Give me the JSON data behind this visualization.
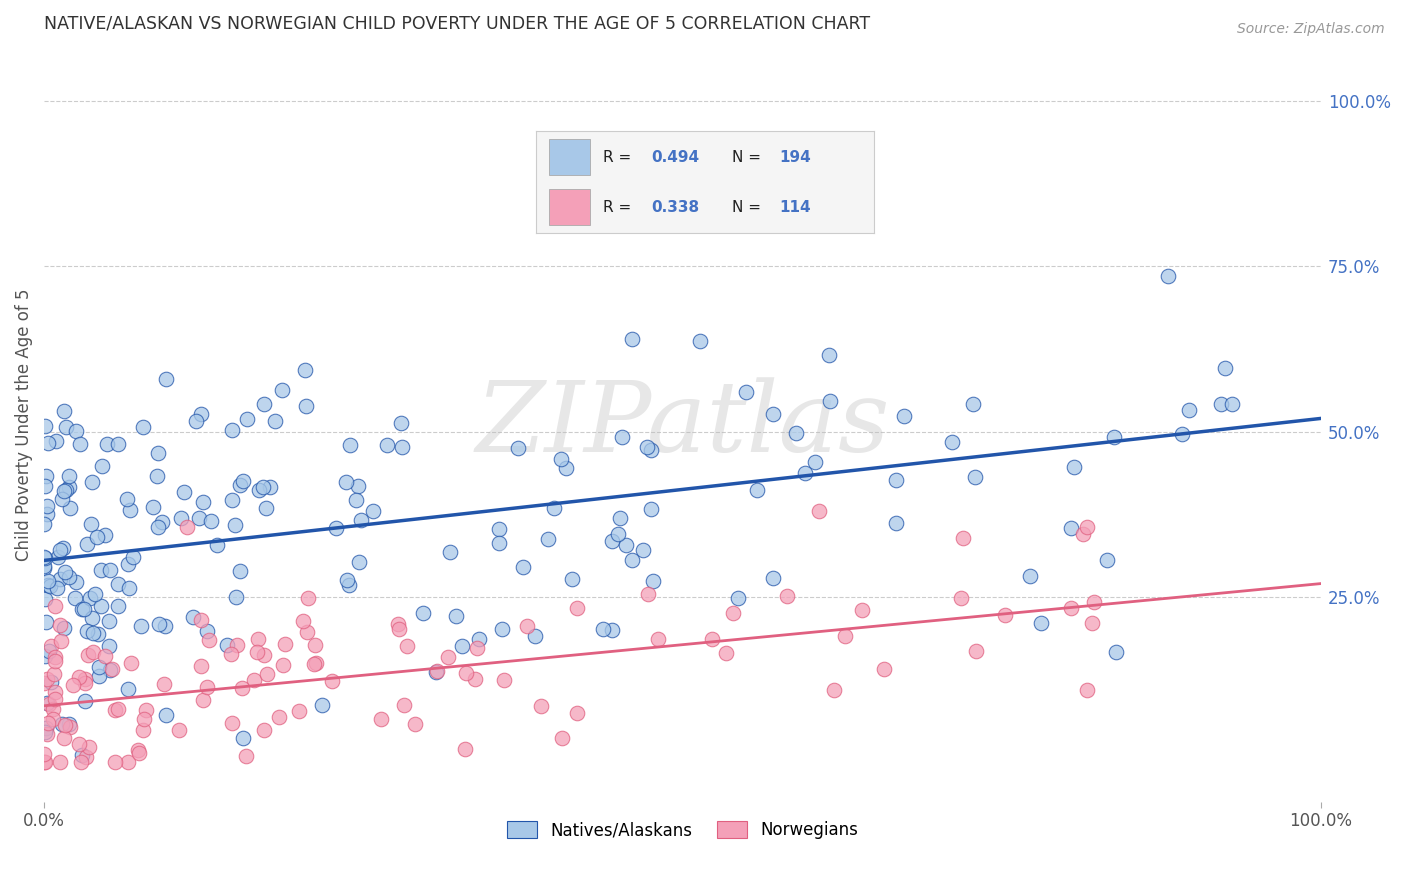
{
  "title": "NATIVE/ALASKAN VS NORWEGIAN CHILD POVERTY UNDER THE AGE OF 5 CORRELATION CHART",
  "source": "Source: ZipAtlas.com",
  "ylabel": "Child Poverty Under the Age of 5",
  "xlim": [
    0,
    1
  ],
  "ylim": [
    -0.06,
    1.08
  ],
  "xtick_labels": [
    "0.0%",
    "100.0%"
  ],
  "ytick_labels_right": [
    "100.0%",
    "75.0%",
    "50.0%",
    "25.0%"
  ],
  "ytick_positions_right": [
    1.0,
    0.75,
    0.5,
    0.25
  ],
  "watermark": "ZIPatlas",
  "legend_label1": "Natives/Alaskans",
  "legend_label2": "Norwegians",
  "native_color": "#a8c8e8",
  "norwegian_color": "#f4a0b8",
  "native_line_color": "#2255aa",
  "norwegian_line_color": "#e06080",
  "native_intercept": 0.305,
  "native_slope": 0.215,
  "norwegian_intercept": 0.085,
  "norwegian_slope": 0.185,
  "bg_color": "#ffffff",
  "grid_color": "#cccccc",
  "title_color": "#333333",
  "axis_label_color": "#555555",
  "right_tick_color": "#4472c4",
  "legend_bg": "#f5f5f5",
  "legend_border": "#cccccc",
  "seed": 7
}
